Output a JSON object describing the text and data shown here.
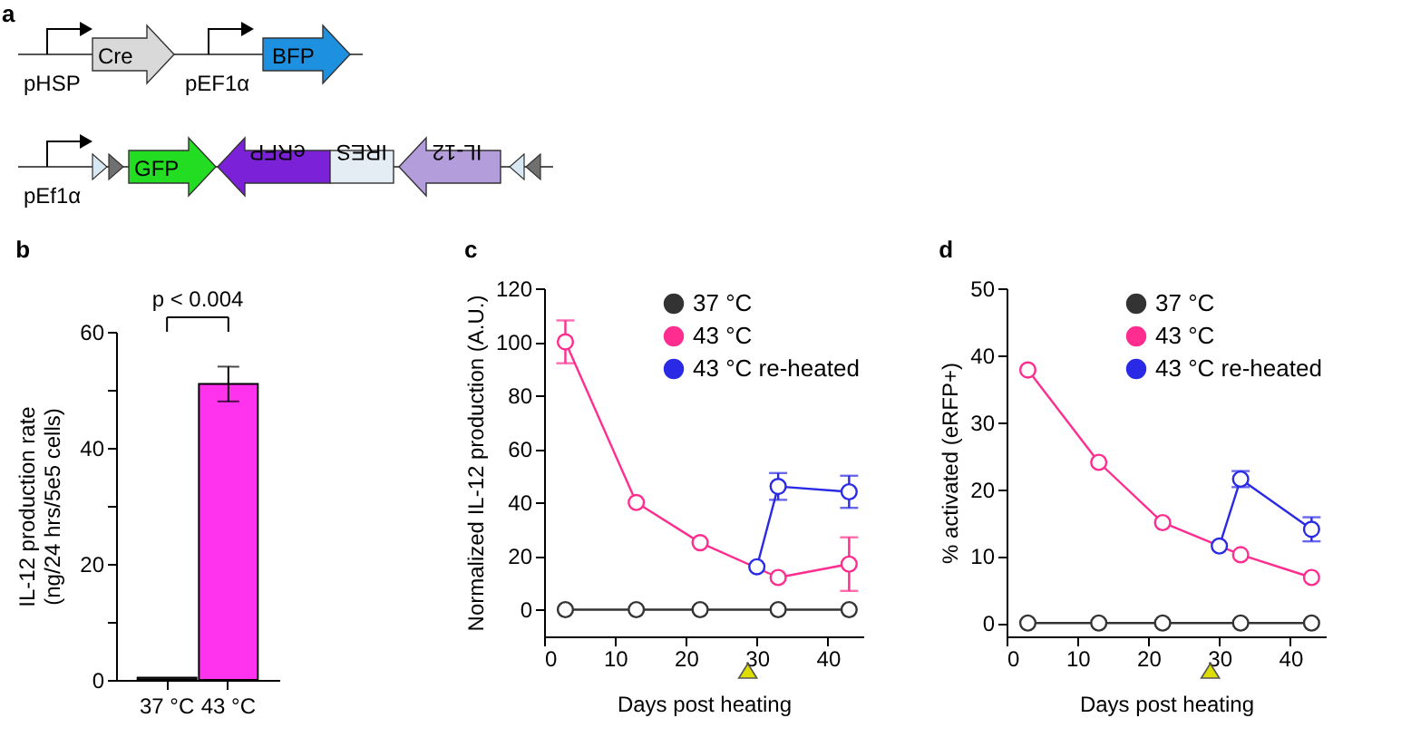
{
  "chart_data": [
    {
      "type": "other",
      "title": "a",
      "annotations": [
        "pHSP",
        "Cre",
        "pEF1α",
        "BFP",
        "pEf1α",
        "GFP",
        "eRFP",
        "IRES",
        "IL-12"
      ]
    },
    {
      "type": "bar",
      "title": "b",
      "categories": [
        "37 °C",
        "43 °C"
      ],
      "values": [
        0.4,
        51
      ],
      "errors": [
        null,
        3
      ],
      "colors": [
        "#333333",
        "#ff33ee"
      ],
      "ylabel": "IL-12 production rate\n(ng/24 hrs/5e5 cells)",
      "ylim": [
        0,
        60
      ],
      "yticks": [
        0,
        {
          "value": 10,
          "label": null
        },
        20,
        {
          "value": 30,
          "label": null
        },
        40,
        {
          "value": 50,
          "label": null
        },
        60
      ],
      "annotations": [
        "p < 0.004"
      ]
    },
    {
      "type": "line",
      "title": "c",
      "xlabel": "Days post heating",
      "ylabel": "Normalized IL-12 production (A.U.)",
      "xlim": [
        0,
        45
      ],
      "xticks": [
        0,
        10,
        20,
        30,
        40
      ],
      "ylim": [
        -10,
        120
      ],
      "yticks": [
        0,
        20,
        40,
        60,
        80,
        100,
        120
      ],
      "marker": "circle",
      "line_style": "solid",
      "legend": "top right",
      "series": [
        {
          "name": "37 °C",
          "color": "#333333",
          "x": [
            3,
            13,
            22,
            33,
            43
          ],
          "values": [
            0,
            0,
            0,
            0,
            0
          ]
        },
        {
          "name": "43 °C",
          "color": "#ff2d8f",
          "x": [
            3,
            13,
            22,
            33,
            43
          ],
          "values": [
            100,
            40,
            25,
            12,
            17
          ],
          "errors": [
            8,
            null,
            null,
            null,
            10
          ]
        },
        {
          "name": "43 °C re-heated",
          "color": "#2a2ae6",
          "x": [
            30,
            33,
            43
          ],
          "values": [
            16,
            46,
            44
          ],
          "errors": [
            null,
            5,
            6
          ]
        }
      ]
    },
    {
      "type": "line",
      "title": "d",
      "xlabel": "Days post heating",
      "ylabel": "% activated (eRFP+)",
      "xlim": [
        0,
        45
      ],
      "xticks": [
        0,
        10,
        20,
        30,
        40
      ],
      "ylim": [
        -2,
        50
      ],
      "yticks": [
        0,
        10,
        20,
        30,
        40,
        50
      ],
      "marker": "circle",
      "line_style": "solid",
      "legend": "top right",
      "series": [
        {
          "name": "37 °C",
          "color": "#333333",
          "x": [
            3,
            13,
            22,
            33,
            43
          ],
          "values": [
            0,
            0,
            0,
            0,
            0
          ]
        },
        {
          "name": "43 °C",
          "color": "#ff2d8f",
          "x": [
            3,
            13,
            22,
            33,
            43
          ],
          "values": [
            37.8,
            24,
            15,
            10.2,
            6.8
          ]
        },
        {
          "name": "43 °C re-heated",
          "color": "#2a2ae6",
          "x": [
            30,
            33,
            43
          ],
          "values": [
            11.5,
            21.5,
            14
          ],
          "errors": [
            null,
            1.2,
            1.8
          ]
        }
      ]
    }
  ]
}
